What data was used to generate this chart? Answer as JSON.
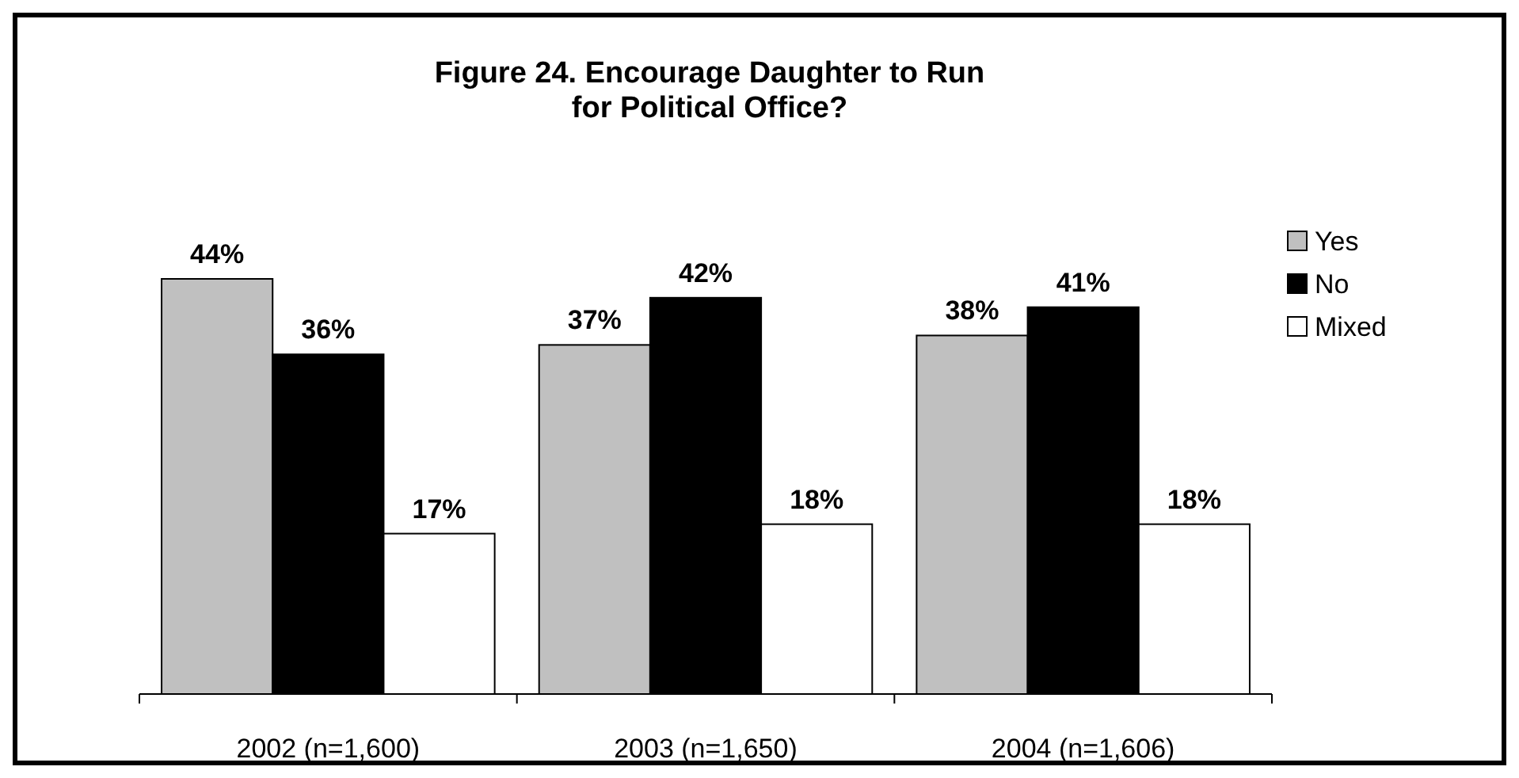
{
  "chart_data": {
    "type": "bar",
    "title": "Figure 24. Encourage Daughter to Run\nfor Political Office?",
    "categories": [
      "2002 (n=1,600)",
      "2003 (n=1,650)",
      "2004 (n=1,606)"
    ],
    "series": [
      {
        "name": "Yes",
        "color": "#c0c0c0",
        "values": [
          44,
          37,
          38
        ],
        "value_labels": [
          "44%",
          "37%",
          "38%"
        ]
      },
      {
        "name": "No",
        "color": "#000000",
        "values": [
          36,
          42,
          41
        ],
        "value_labels": [
          "36%",
          "42%",
          "41%"
        ]
      },
      {
        "name": "Mixed",
        "color": "#ffffff",
        "values": [
          17,
          18,
          18
        ],
        "value_labels": [
          "17%",
          "18%",
          "18%"
        ]
      }
    ],
    "legend": "right",
    "grid": false
  }
}
